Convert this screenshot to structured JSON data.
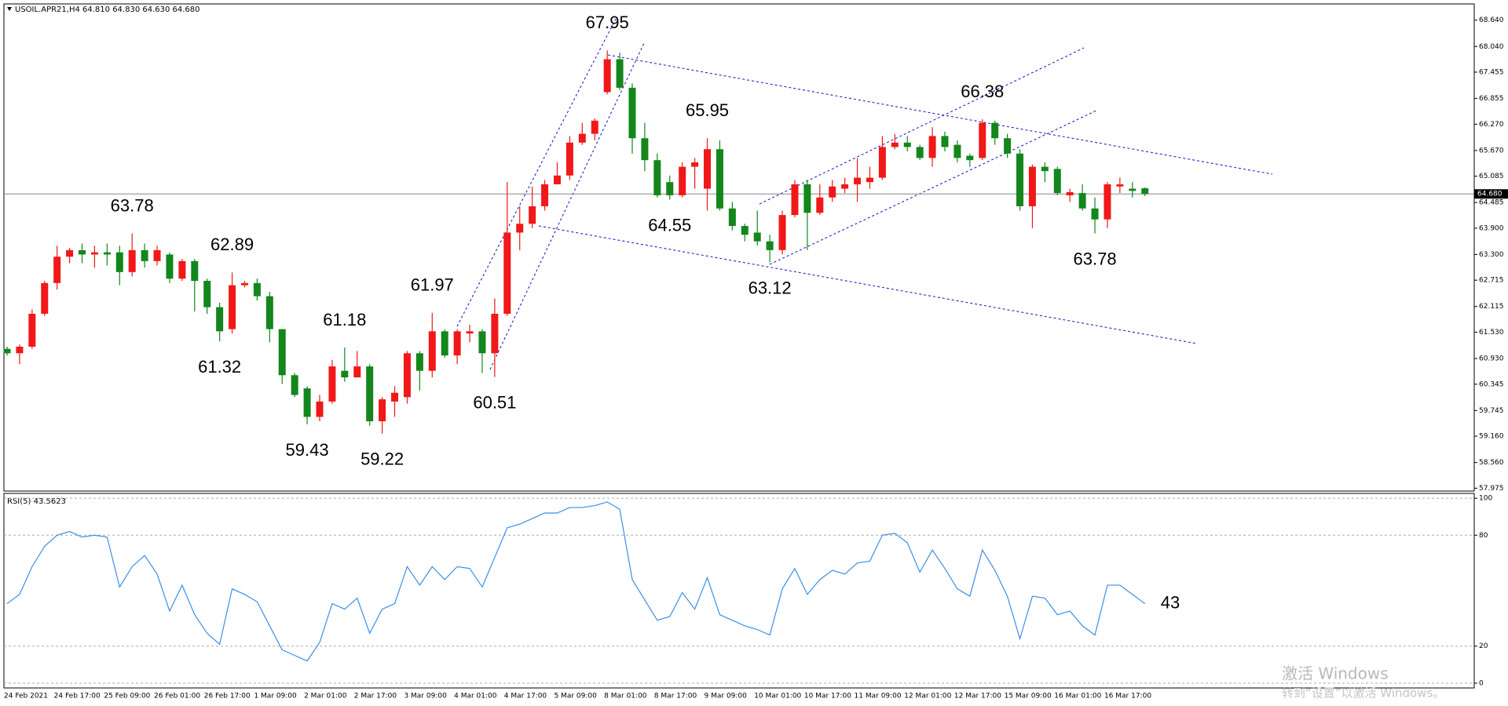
{
  "chart_data": [
    {
      "type": "candlestick",
      "title": "USOIL.APR21,H4  64.810 64.830 64.630 64.680",
      "open": [
        61.15,
        61.05,
        61.2,
        61.95,
        62.65,
        63.25,
        63.4,
        63.3,
        63.35,
        63.35,
        62.9,
        63.4,
        63.15,
        63.3,
        62.75,
        63.15,
        62.7,
        62.1,
        61.6,
        62.6,
        62.65,
        62.35,
        61.6,
        60.55,
        60.25,
        59.6,
        59.95,
        60.65,
        60.5,
        60.75,
        59.5,
        59.95,
        60.05,
        61.05,
        60.65,
        61.55,
        61.0,
        61.5,
        61.55,
        61.05,
        61.95,
        63.8,
        64.0,
        64.4,
        64.9,
        65.1,
        65.85,
        66.05,
        67.0,
        67.75,
        67.1,
        65.95,
        65.45,
        64.95,
        64.65,
        65.3,
        64.8,
        65.7,
        64.35,
        63.95,
        63.8,
        63.6,
        63.4,
        64.2,
        64.9,
        64.25,
        64.6,
        64.8,
        64.9,
        64.95,
        65.05,
        65.75,
        65.85,
        65.75,
        65.5,
        66.0,
        65.8,
        65.55,
        65.5,
        66.3,
        65.95,
        65.6,
        64.4,
        65.3,
        65.25,
        64.65,
        64.7,
        64.35,
        64.1,
        64.85,
        64.8,
        64.81
      ],
      "high": [
        61.2,
        61.25,
        62.05,
        62.7,
        63.5,
        63.45,
        63.55,
        63.5,
        63.55,
        63.5,
        63.78,
        63.55,
        63.5,
        63.35,
        63.2,
        63.2,
        62.75,
        62.2,
        62.89,
        62.7,
        62.75,
        62.45,
        61.6,
        60.6,
        60.3,
        60.1,
        60.9,
        61.18,
        61.1,
        60.8,
        60.05,
        60.3,
        61.1,
        61.1,
        61.97,
        61.6,
        61.6,
        61.7,
        61.6,
        62.3,
        64.95,
        64.4,
        64.85,
        65.0,
        65.4,
        66.0,
        66.3,
        66.4,
        67.95,
        67.9,
        67.2,
        66.3,
        65.6,
        65.1,
        65.4,
        65.5,
        65.95,
        65.9,
        64.5,
        64.0,
        64.3,
        63.75,
        64.3,
        65.0,
        65.0,
        64.9,
        65.0,
        65.05,
        65.5,
        65.3,
        66.0,
        66.05,
        66.0,
        65.8,
        66.2,
        66.1,
        65.9,
        65.6,
        66.38,
        66.35,
        66.05,
        65.7,
        65.35,
        65.4,
        65.3,
        64.8,
        64.9,
        64.6,
        64.95,
        65.05,
        64.95,
        64.83
      ],
      "low": [
        61.0,
        60.8,
        61.15,
        61.9,
        62.5,
        63.1,
        63.1,
        63.0,
        63.05,
        62.6,
        62.8,
        63.0,
        63.05,
        62.65,
        62.7,
        62.0,
        61.95,
        61.32,
        61.5,
        62.55,
        62.25,
        61.3,
        60.35,
        60.05,
        59.43,
        59.5,
        59.9,
        60.4,
        60.5,
        59.4,
        59.22,
        59.6,
        59.9,
        60.2,
        60.5,
        60.95,
        60.8,
        61.3,
        60.6,
        60.51,
        61.9,
        63.4,
        63.9,
        64.3,
        64.9,
        65.0,
        65.8,
        65.9,
        66.95,
        67.05,
        65.6,
        65.2,
        64.6,
        64.55,
        64.6,
        64.8,
        64.3,
        64.3,
        63.85,
        63.6,
        63.5,
        63.12,
        63.3,
        64.15,
        63.4,
        64.2,
        64.5,
        64.7,
        64.5,
        64.8,
        65.0,
        65.7,
        65.65,
        65.45,
        65.3,
        65.65,
        65.4,
        65.3,
        65.45,
        65.8,
        65.5,
        64.3,
        63.9,
        64.95,
        64.65,
        64.5,
        64.3,
        63.78,
        63.9,
        64.7,
        64.6,
        64.63
      ],
      "close": [
        61.05,
        61.2,
        61.95,
        62.65,
        63.25,
        63.4,
        63.3,
        63.35,
        63.3,
        62.9,
        63.4,
        63.15,
        63.4,
        62.75,
        63.15,
        62.7,
        62.1,
        61.55,
        62.6,
        62.65,
        62.35,
        61.6,
        60.55,
        60.1,
        59.6,
        59.95,
        60.75,
        60.5,
        60.75,
        59.5,
        60.0,
        60.15,
        61.05,
        60.65,
        61.55,
        61.0,
        61.55,
        61.55,
        61.05,
        61.95,
        63.8,
        64.0,
        64.4,
        64.9,
        65.1,
        65.85,
        66.05,
        66.35,
        67.75,
        67.1,
        65.95,
        65.45,
        64.65,
        64.65,
        65.3,
        65.4,
        65.7,
        64.35,
        63.95,
        63.75,
        63.6,
        63.4,
        64.2,
        64.9,
        64.25,
        64.6,
        64.85,
        64.9,
        65.05,
        65.05,
        65.75,
        65.85,
        65.75,
        65.5,
        66.0,
        65.75,
        65.5,
        65.45,
        66.3,
        65.95,
        65.6,
        64.4,
        65.3,
        65.2,
        64.7,
        64.72,
        64.35,
        64.1,
        64.9,
        64.9,
        64.75,
        64.68
      ],
      "up_color": "#f01818",
      "down_color": "#13861c",
      "ylim": [
        57.91,
        69.01
      ],
      "yticks": [
        {
          "value": 68.64,
          "label": "68.640"
        },
        {
          "value": 68.04,
          "label": "68.040"
        },
        {
          "value": 67.455,
          "label": "67.455"
        },
        {
          "value": 66.855,
          "label": "66.855"
        },
        {
          "value": 66.27,
          "label": "66.270"
        },
        {
          "value": 65.67,
          "label": "65.670"
        },
        {
          "value": 65.085,
          "label": "65.085"
        },
        {
          "value": 64.485,
          "label": "64.485"
        },
        {
          "value": 63.9,
          "label": "63.900"
        },
        {
          "value": 63.3,
          "label": "63.300"
        },
        {
          "value": 62.715,
          "label": "62.715"
        },
        {
          "value": 62.115,
          "label": "62.115"
        },
        {
          "value": 61.53,
          "label": "61.530"
        },
        {
          "value": 60.93,
          "label": "60.930"
        },
        {
          "value": 60.345,
          "label": "60.345"
        },
        {
          "value": 59.745,
          "label": "59.745"
        },
        {
          "value": 59.16,
          "label": "59.160"
        },
        {
          "value": 58.56,
          "label": "58.560"
        },
        {
          "value": 57.975,
          "label": "57.975"
        }
      ],
      "last_price": {
        "value": 64.68,
        "label": "64.680"
      },
      "annotations": [
        63.78,
        61.32,
        62.89,
        59.43,
        61.18,
        59.22,
        61.97,
        60.51,
        67.95,
        64.55,
        65.95,
        63.12,
        66.38,
        63.78
      ],
      "annotation_color": "#e8201c"
    },
    {
      "type": "line",
      "title": "RSI(5) 43.5623",
      "values": [
        43,
        48,
        63,
        74,
        80,
        82,
        79,
        80,
        79,
        52,
        63,
        69,
        59,
        39,
        53,
        37,
        27,
        21,
        51,
        48,
        44,
        31,
        18,
        15,
        12,
        22,
        43,
        40,
        46,
        27,
        40,
        43,
        63,
        53,
        63,
        56,
        63,
        62,
        52,
        68,
        84,
        86,
        89,
        92,
        92,
        95,
        95,
        96,
        98,
        94,
        56,
        45,
        34,
        36,
        49,
        40,
        57,
        37,
        34,
        31,
        29,
        26,
        51,
        62,
        48,
        56,
        61,
        59,
        65,
        66,
        80,
        81,
        76,
        60,
        72,
        62,
        51,
        47,
        72,
        61,
        47,
        24,
        47,
        46,
        37,
        39,
        31,
        26,
        53,
        53,
        48,
        43
      ],
      "color": "#3c8ee6",
      "ylim": [
        -2.6,
        102.6
      ],
      "yticks": [
        0,
        20,
        80,
        100
      ],
      "annotations": [
        43
      ],
      "annotation_color": "#e8201c",
      "categories": [
        "24 Feb 2021",
        null,
        null,
        null,
        "24 Feb 17:00",
        null,
        null,
        null,
        "25 Feb 09:00",
        null,
        null,
        null,
        "26 Feb 01:00",
        null,
        null,
        null,
        "26 Feb 17:00",
        null,
        null,
        null,
        "1 Mar 09:00",
        null,
        null,
        null,
        "2 Mar 01:00",
        null,
        null,
        null,
        "2 Mar 17:00",
        null,
        null,
        null,
        "3 Mar 09:00",
        null,
        null,
        null,
        "4 Mar 01:00",
        null,
        null,
        null,
        "4 Mar 17:00",
        null,
        null,
        null,
        "5 Mar 09:00",
        null,
        null,
        null,
        "8 Mar 01:00",
        null,
        null,
        null,
        "8 Mar 17:00",
        null,
        null,
        null,
        "9 Mar 09:00",
        null,
        null,
        null,
        "10 Mar 01:00",
        null,
        null,
        null,
        "10 Mar 17:00",
        null,
        null,
        null,
        "11 Mar 09:00",
        null,
        null,
        null,
        "12 Mar 01:00",
        null,
        null,
        null,
        "12 Mar 17:00",
        null,
        null,
        null,
        "15 Mar 09:00",
        null,
        null,
        null,
        "16 Mar 01:00",
        null,
        null,
        null,
        "16 Mar 17:00",
        null,
        null,
        null
      ]
    }
  ],
  "watermark": [
    "激活 Windows",
    "转到“设置”以激活 Windows。"
  ]
}
